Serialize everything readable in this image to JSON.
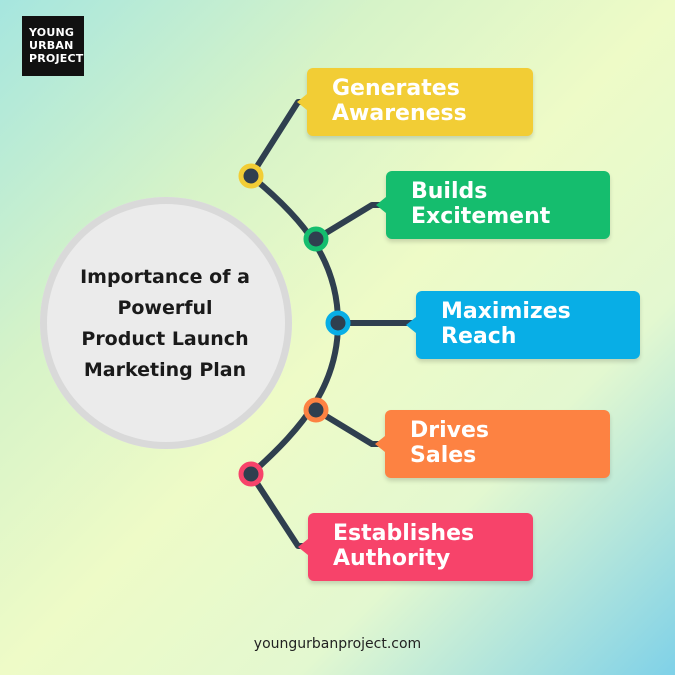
{
  "brand": {
    "logo_lines": [
      "YOUNG",
      "URBAN",
      "PROJECT"
    ]
  },
  "center": {
    "title_lines": [
      "Importance of a",
      "Powerful",
      "Product Launch",
      "Marketing Plan"
    ]
  },
  "items": [
    {
      "line1": "Generates",
      "line2": "Awareness",
      "color": "#f2cd35"
    },
    {
      "line1": "Builds",
      "line2": "Excitement",
      "color": "#15bd6e"
    },
    {
      "line1": "Maximizes",
      "line2": "Reach",
      "color": "#08aee6"
    },
    {
      "line1": "Drives",
      "line2": "Sales",
      "color": "#fd8242"
    },
    {
      "line1": "Establishes",
      "line2": "Authority",
      "color": "#f7436a"
    }
  ],
  "footer": {
    "url": "youngurbanproject.com"
  },
  "colors": {
    "connector": "#2f3f4f",
    "circle_fill": "#ebebeb"
  }
}
